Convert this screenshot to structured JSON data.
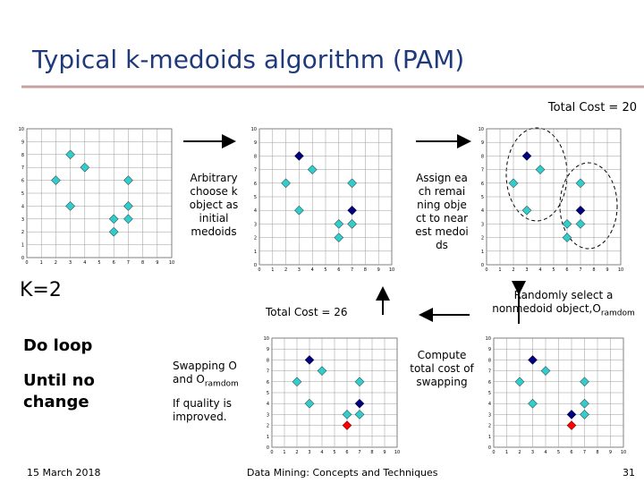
{
  "title": "Typical k-medoids algorithm (PAM)",
  "total_cost_top": "Total Cost = 20",
  "total_cost_mid": "Total Cost = 26",
  "k_label": "K=2",
  "steps": {
    "choose": "Arbitrary choose k object as initial medoids",
    "assign": "Assign each remaining object to nearest medoids",
    "random": "Randomly select a nonmedoid object,O",
    "random_sub": "ramdom",
    "compute": "Compute total cost of swapping",
    "swap": "Swapping O and O",
    "swap_sub": "ramdom",
    "quality": "If quality is improved."
  },
  "loop": "Do loop",
  "until": "Until no change",
  "footer": {
    "date": "15 March 2018",
    "center": "Data Mining: Concepts and Techniques",
    "page": "31"
  },
  "chart_data": [
    {
      "type": "scatter",
      "x": [
        2,
        3,
        4,
        3,
        7,
        7,
        6,
        7,
        6
      ],
      "y": [
        6,
        8,
        7,
        4,
        6,
        4,
        3,
        3,
        2
      ],
      "xlim": [
        0,
        10
      ],
      "ylim": [
        0,
        10
      ],
      "xticks": [
        0,
        1,
        2,
        3,
        4,
        5,
        6,
        7,
        8,
        9,
        10
      ],
      "yticks": [
        0,
        1,
        2,
        3,
        4,
        5,
        6,
        7,
        8,
        9,
        10
      ],
      "color": "#33cccc",
      "medoids": [],
      "random": null
    },
    {
      "type": "scatter",
      "x": [
        2,
        3,
        4,
        3,
        7,
        7,
        6,
        7,
        6
      ],
      "y": [
        6,
        8,
        7,
        4,
        6,
        4,
        3,
        3,
        2
      ],
      "xlim": [
        0,
        10
      ],
      "ylim": [
        0,
        10
      ],
      "xticks": [
        0,
        1,
        2,
        3,
        4,
        5,
        6,
        7,
        8,
        9,
        10
      ],
      "yticks": [
        0,
        1,
        2,
        3,
        4,
        5,
        6,
        7,
        8,
        9,
        10
      ],
      "color": "#33cccc",
      "medoid_color": "#000080",
      "medoids": [
        1,
        5
      ],
      "random": null
    },
    {
      "type": "scatter",
      "x": [
        2,
        3,
        4,
        3,
        7,
        7,
        6,
        7,
        6
      ],
      "y": [
        6,
        8,
        7,
        4,
        6,
        4,
        3,
        3,
        2
      ],
      "xlim": [
        0,
        10
      ],
      "ylim": [
        0,
        10
      ],
      "xticks": [
        0,
        1,
        2,
        3,
        4,
        5,
        6,
        7,
        8,
        9,
        10
      ],
      "yticks": [
        0,
        1,
        2,
        3,
        4,
        5,
        6,
        7,
        8,
        9,
        10
      ],
      "color": "#33cccc",
      "medoid_color": "#000080",
      "medoids": [
        1,
        5
      ],
      "random": null
    },
    {
      "type": "scatter",
      "x": [
        2,
        3,
        4,
        3,
        7,
        7,
        6,
        7,
        6
      ],
      "y": [
        6,
        8,
        7,
        4,
        6,
        4,
        3,
        3,
        2
      ],
      "xlim": [
        0,
        10
      ],
      "ylim": [
        0,
        10
      ],
      "xticks": [
        0,
        1,
        2,
        3,
        4,
        5,
        6,
        7,
        8,
        9,
        10
      ],
      "yticks": [
        0,
        1,
        2,
        3,
        4,
        5,
        6,
        7,
        8,
        9,
        10
      ],
      "color": "#33cccc",
      "medoid_color": "#000080",
      "random_color": "#ff0000",
      "medoids": [
        1,
        5
      ],
      "random": 8
    },
    {
      "type": "scatter",
      "x": [
        2,
        3,
        4,
        3,
        7,
        7,
        6,
        7,
        6
      ],
      "y": [
        6,
        8,
        7,
        4,
        6,
        4,
        3,
        3,
        2
      ],
      "xlim": [
        0,
        10
      ],
      "ylim": [
        0,
        10
      ],
      "xticks": [
        0,
        1,
        2,
        3,
        4,
        5,
        6,
        7,
        8,
        9,
        10
      ],
      "yticks": [
        0,
        1,
        2,
        3,
        4,
        5,
        6,
        7,
        8,
        9,
        10
      ],
      "color": "#33cccc",
      "medoid_color": "#000080",
      "random_color": "#ff0000",
      "medoids": [
        1,
        6
      ],
      "random": 8
    }
  ]
}
